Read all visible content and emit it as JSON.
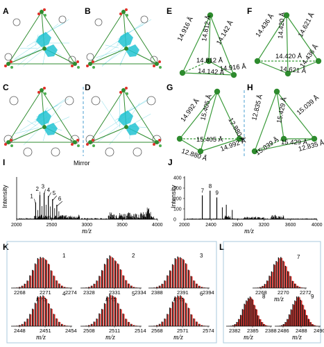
{
  "panel_labels": [
    "A",
    "B",
    "C",
    "D",
    "E",
    "F",
    "G",
    "H",
    "I",
    "J",
    "K",
    "L"
  ],
  "mirror_label": "Mirror",
  "tetrahedra": {
    "E": [
      "14.916 Å",
      "14.812 Å",
      "14.142 Å",
      "14.812 Å",
      "14.142 Å",
      "14.916 Å"
    ],
    "F": [
      "14.436 Å",
      "14.420 Å",
      "14.621 Å",
      "14.420 Å",
      "14.621 Å",
      "14.436 Å"
    ],
    "G": [
      "14.992 Å",
      "15.405 Å",
      "12.880 Å",
      "15.405 Å",
      "12.880 Å",
      "14.992 Å"
    ],
    "H": [
      "12.835 Å",
      "15.429 Å",
      "15.039 Å",
      "15.429 Å",
      "15.039 Å",
      "12.835 Å"
    ]
  },
  "colors": {
    "node": "#2e8b2e",
    "edge": "#3a9a3a",
    "red": "#e0302a",
    "black": "#111111",
    "box": "#a9c8dc"
  },
  "chart_data": [
    {
      "type": "bar",
      "panel": "I",
      "xlabel": "m/z",
      "ylabel": "Intensity",
      "xlim": [
        2000,
        4000
      ],
      "xticks": [
        "2000",
        "2500",
        "3000",
        "3500",
        "4000"
      ],
      "peaks": [
        {
          "x": 2270,
          "y": 0.42,
          "label": "1"
        },
        {
          "x": 2330,
          "y": 0.6,
          "label": "2"
        },
        {
          "x": 2390,
          "y": 0.66,
          "label": "3"
        },
        {
          "x": 2450,
          "y": 0.58,
          "label": "4"
        },
        {
          "x": 2510,
          "y": 0.5,
          "label": "5"
        },
        {
          "x": 2570,
          "y": 0.36,
          "label": "6"
        }
      ]
    },
    {
      "type": "bar",
      "panel": "J",
      "xlabel": "m/z",
      "ylabel": "Intensity",
      "xlim": [
        2000,
        4000
      ],
      "ylim": [
        0,
        400
      ],
      "xticks": [
        "2000",
        "2400",
        "2800",
        "3200",
        "3600",
        "4000"
      ],
      "yticks": [
        "0",
        "100",
        "200",
        "300",
        "400"
      ],
      "peaks": [
        {
          "x": 2268,
          "y": 230,
          "label": "7"
        },
        {
          "x": 2385,
          "y": 275,
          "label": "8"
        },
        {
          "x": 2487,
          "y": 210,
          "label": "9"
        }
      ]
    },
    {
      "type": "bar",
      "panel": "K",
      "xlabel": "m/z",
      "subplots": [
        {
          "label": "1",
          "xticks": [
            "2268",
            "2271",
            "2274"
          ]
        },
        {
          "label": "2",
          "xticks": [
            "2328",
            "2331",
            "2334"
          ]
        },
        {
          "label": "3",
          "xticks": [
            "2388",
            "2391",
            "2394"
          ]
        },
        {
          "label": "4",
          "xticks": [
            "2448",
            "2451",
            "2454"
          ]
        },
        {
          "label": "5",
          "xticks": [
            "2508",
            "2511",
            "2514"
          ]
        },
        {
          "label": "6",
          "xticks": [
            "2568",
            "2571",
            "2574"
          ]
        }
      ]
    },
    {
      "type": "bar",
      "panel": "L",
      "xlabel": "m/z",
      "subplots": [
        {
          "label": "7",
          "xticks": [
            "2268",
            "2270",
            "2272"
          ]
        },
        {
          "label": "8",
          "xticks": [
            "2382",
            "2385",
            "2388"
          ]
        },
        {
          "label": "9",
          "xticks": [
            "2486",
            "2488",
            "2490"
          ]
        }
      ]
    }
  ]
}
